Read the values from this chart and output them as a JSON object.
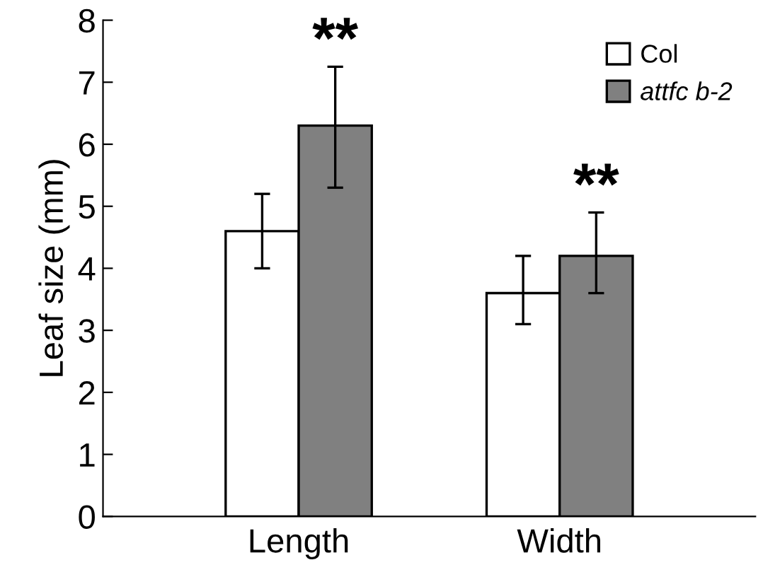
{
  "chart_data": {
    "type": "bar",
    "ylabel": "Leaf size (mm)",
    "categories": [
      "Length",
      "Width"
    ],
    "series": [
      {
        "name": "Col",
        "color": "#ffffff",
        "values": [
          4.6,
          3.6
        ],
        "errors": [
          [
            4.0,
            5.2
          ],
          [
            3.1,
            4.2
          ]
        ]
      },
      {
        "name": "attfc b-2",
        "color": "#808080",
        "values": [
          6.3,
          4.2
        ],
        "errors": [
          [
            5.3,
            7.25
          ],
          [
            3.6,
            4.9
          ]
        ]
      }
    ],
    "annotations": [
      "**",
      "**"
    ],
    "ylim": [
      0,
      8
    ],
    "yticks": [
      0,
      1,
      2,
      3,
      4,
      5,
      6,
      7,
      8
    ],
    "legend": "top right",
    "grid": false
  }
}
